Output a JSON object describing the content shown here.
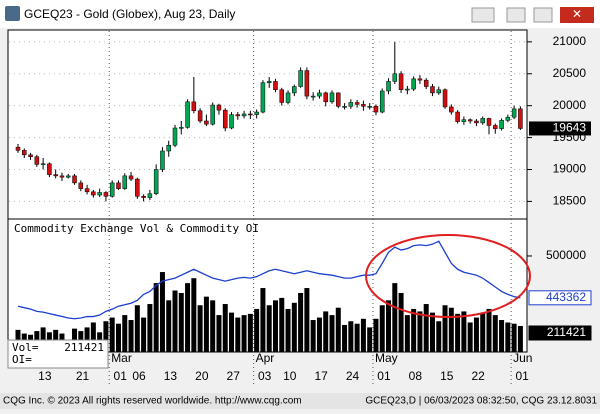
{
  "window": {
    "title": "GCEQ23 - Gold (Globex), Aug 23, Daily"
  },
  "footer": {
    "left": "CQG Inc. © 2023 All rights reserved worldwide. http://www.cqg.com",
    "right": "GCEQ23,D | 06/03/2023 08:32:50, CQG 23.12.8031"
  },
  "chart_data": [
    {
      "type": "candlestick",
      "open": [
        19350,
        19300,
        19230,
        19200,
        19080,
        19090,
        18920,
        18900,
        18880,
        18900,
        18790,
        18700,
        18650,
        18600,
        18640,
        18580,
        18790,
        18700,
        18900,
        18850,
        18580,
        18560,
        18620,
        19000,
        19290,
        19380,
        19650,
        19660,
        20060,
        19920,
        19760,
        19710,
        20010,
        19930,
        19650,
        19860,
        19840,
        19870,
        19860,
        19900,
        20360,
        20380,
        20250,
        20050,
        20200,
        20300,
        20550,
        20150,
        20150,
        20200,
        20060,
        20200,
        19990,
        19990,
        20050,
        20020,
        19990,
        19990,
        19900,
        20230,
        20380,
        20500,
        20250,
        20260,
        20420,
        20400,
        20300,
        20200,
        20250,
        19980,
        19900,
        19750,
        19780,
        19760,
        19730,
        19800,
        19690,
        19640,
        19770,
        19820,
        19950
      ],
      "high": [
        19400,
        19330,
        19260,
        19230,
        19180,
        19110,
        19000,
        18950,
        18930,
        18930,
        18830,
        18760,
        18680,
        18700,
        18660,
        18830,
        18830,
        18940,
        18960,
        18870,
        18610,
        18680,
        19080,
        19350,
        19450,
        19700,
        19760,
        20100,
        20450,
        19960,
        19860,
        20050,
        20030,
        19960,
        19900,
        19900,
        19920,
        19920,
        19940,
        20400,
        20450,
        20420,
        20280,
        20240,
        20330,
        20600,
        20600,
        20210,
        20250,
        20220,
        20240,
        20210,
        20040,
        20100,
        20090,
        20080,
        20040,
        20020,
        20270,
        20430,
        21000,
        20540,
        20310,
        20460,
        20480,
        20430,
        20340,
        20300,
        20270,
        20020,
        19930,
        19830,
        19800,
        19790,
        19830,
        19810,
        19720,
        19800,
        19860,
        20000,
        19990
      ],
      "low": [
        19260,
        19180,
        19150,
        19040,
        19000,
        18880,
        18860,
        18820,
        18860,
        18760,
        18660,
        18610,
        18560,
        18570,
        18500,
        18560,
        18680,
        18680,
        18820,
        18540,
        18500,
        18520,
        18600,
        18960,
        19200,
        19350,
        19550,
        19640,
        19880,
        19730,
        19680,
        19690,
        19860,
        19600,
        19630,
        19780,
        19800,
        19790,
        19800,
        19880,
        20280,
        20210,
        20000,
        20020,
        20150,
        20280,
        20100,
        20080,
        20110,
        19990,
        20030,
        19960,
        19940,
        19950,
        19970,
        19920,
        19940,
        19850,
        19880,
        20180,
        20340,
        20200,
        20180,
        20230,
        20340,
        20260,
        20150,
        20170,
        19950,
        19860,
        19720,
        19700,
        19720,
        19680,
        19700,
        19550,
        19560,
        19610,
        19740,
        19790,
        19620
      ],
      "close": [
        19300,
        19230,
        19200,
        19080,
        19090,
        18920,
        18900,
        18880,
        18900,
        18790,
        18700,
        18650,
        18600,
        18640,
        18580,
        18790,
        18700,
        18900,
        18850,
        18580,
        18560,
        18620,
        19000,
        19290,
        19380,
        19650,
        19660,
        20060,
        19920,
        19760,
        19710,
        20010,
        19930,
        19650,
        19860,
        19840,
        19870,
        19860,
        19900,
        20360,
        20380,
        20250,
        20050,
        20200,
        20300,
        20550,
        20150,
        20150,
        20200,
        20060,
        20200,
        19990,
        19990,
        20050,
        20020,
        19990,
        19990,
        19900,
        20230,
        20380,
        20500,
        20250,
        20260,
        20420,
        20400,
        20300,
        20200,
        20250,
        19980,
        19900,
        19750,
        19780,
        19760,
        19730,
        19800,
        19690,
        19640,
        19770,
        19820,
        19950,
        19643
      ],
      "up_color": "#00a651",
      "down_color": "#d01010",
      "ylim": [
        18240,
        21170
      ],
      "yticks": [
        18500,
        19000,
        19500,
        20000,
        20500,
        21000
      ],
      "grid": true
    },
    {
      "type": "bar-line",
      "title": "Commodity Exchange Vol & Commodity OI",
      "categories": [
        null,
        null,
        null,
        "13",
        null,
        null,
        null,
        null,
        null,
        "21",
        null,
        null,
        null,
        null,
        null,
        "01",
        null,
        null,
        "06",
        null,
        null,
        null,
        null,
        "13",
        null,
        null,
        null,
        null,
        "20",
        null,
        null,
        null,
        null,
        "27",
        null,
        null,
        null,
        null,
        "03",
        null,
        null,
        null,
        "10",
        null,
        null,
        null,
        null,
        "17",
        null,
        null,
        null,
        null,
        "24",
        null,
        null,
        null,
        null,
        "01",
        null,
        null,
        null,
        null,
        "08",
        null,
        null,
        null,
        null,
        "15",
        null,
        null,
        null,
        null,
        "22",
        null,
        null,
        null,
        null,
        null,
        null,
        "01",
        null
      ],
      "month_labels": [
        null,
        null,
        null,
        null,
        null,
        null,
        null,
        null,
        null,
        null,
        null,
        null,
        null,
        null,
        null,
        "Mar",
        null,
        null,
        null,
        null,
        null,
        null,
        null,
        null,
        null,
        null,
        null,
        null,
        null,
        null,
        null,
        null,
        null,
        null,
        null,
        null,
        null,
        null,
        "Apr",
        null,
        null,
        null,
        null,
        null,
        null,
        null,
        null,
        null,
        null,
        null,
        null,
        null,
        null,
        null,
        null,
        null,
        null,
        "May",
        null,
        null,
        null,
        null,
        null,
        null,
        null,
        null,
        null,
        null,
        null,
        null,
        null,
        null,
        null,
        null,
        null,
        null,
        null,
        null,
        null,
        "Jun",
        null
      ],
      "series": [
        {
          "name": "Vol=",
          "color": "#000000",
          "values": [
            180000,
            150000,
            140000,
            170000,
            200000,
            160000,
            180000,
            150000,
            60000,
            190000,
            170000,
            200000,
            240000,
            160000,
            250000,
            280000,
            230000,
            300000,
            260000,
            380000,
            280000,
            390000,
            560000,
            650000,
            420000,
            500000,
            480000,
            560000,
            600000,
            380000,
            450000,
            420000,
            300000,
            390000,
            320000,
            280000,
            300000,
            310000,
            350000,
            520000,
            380000,
            420000,
            440000,
            350000,
            400000,
            480000,
            520000,
            260000,
            280000,
            330000,
            300000,
            360000,
            220000,
            250000,
            230000,
            270000,
            200000,
            270000,
            380000,
            420000,
            560000,
            480000,
            300000,
            350000,
            330000,
            390000,
            320000,
            250000,
            380000,
            360000,
            310000,
            330000,
            240000,
            280000,
            320000,
            350000,
            300000,
            260000,
            240000,
            230000,
            211421
          ]
        },
        {
          "name": "OI=",
          "color": "#1c3fd0",
          "axis": "y2",
          "values": [
            432000,
            430000,
            428000,
            425000,
            424000,
            422000,
            420000,
            418000,
            416000,
            415000,
            416000,
            418000,
            418000,
            420000,
            425000,
            428000,
            432000,
            434000,
            436000,
            440000,
            448000,
            452000,
            460000,
            466000,
            468000,
            470000,
            474000,
            478000,
            482000,
            478000,
            474000,
            470000,
            468000,
            466000,
            468000,
            470000,
            471000,
            470000,
            472000,
            476000,
            480000,
            482000,
            480000,
            478000,
            476000,
            478000,
            480000,
            478000,
            476000,
            475000,
            474000,
            472000,
            470000,
            470000,
            472000,
            474000,
            474000,
            476000,
            490000,
            505000,
            512000,
            508000,
            510000,
            514000,
            515000,
            514000,
            516000,
            520000,
            505000,
            490000,
            482000,
            478000,
            476000,
            474000,
            470000,
            464000,
            458000,
            452000,
            448000,
            445000,
            443362
          ]
        }
      ],
      "ylim": [
        0,
        1057000
      ],
      "y2lim": [
        370000,
        546000
      ],
      "y2ticks": [
        500000
      ]
    }
  ]
}
